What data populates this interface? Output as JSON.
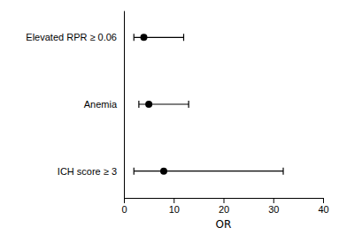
{
  "chart_data": {
    "type": "forest",
    "categories": [
      "ICH score ≥ 3",
      "Anemia",
      "Elevated RPR ≥ 0.06"
    ],
    "values": [
      8.0,
      5.0,
      4.0
    ],
    "ci_low": [
      2.0,
      3.0,
      2.0
    ],
    "ci_high": [
      32.0,
      13.0,
      12.0
    ],
    "xlabel": "OR",
    "xlim": [
      0,
      40
    ],
    "xticks": [
      0,
      10,
      20,
      30,
      40
    ],
    "color": "#000000"
  }
}
